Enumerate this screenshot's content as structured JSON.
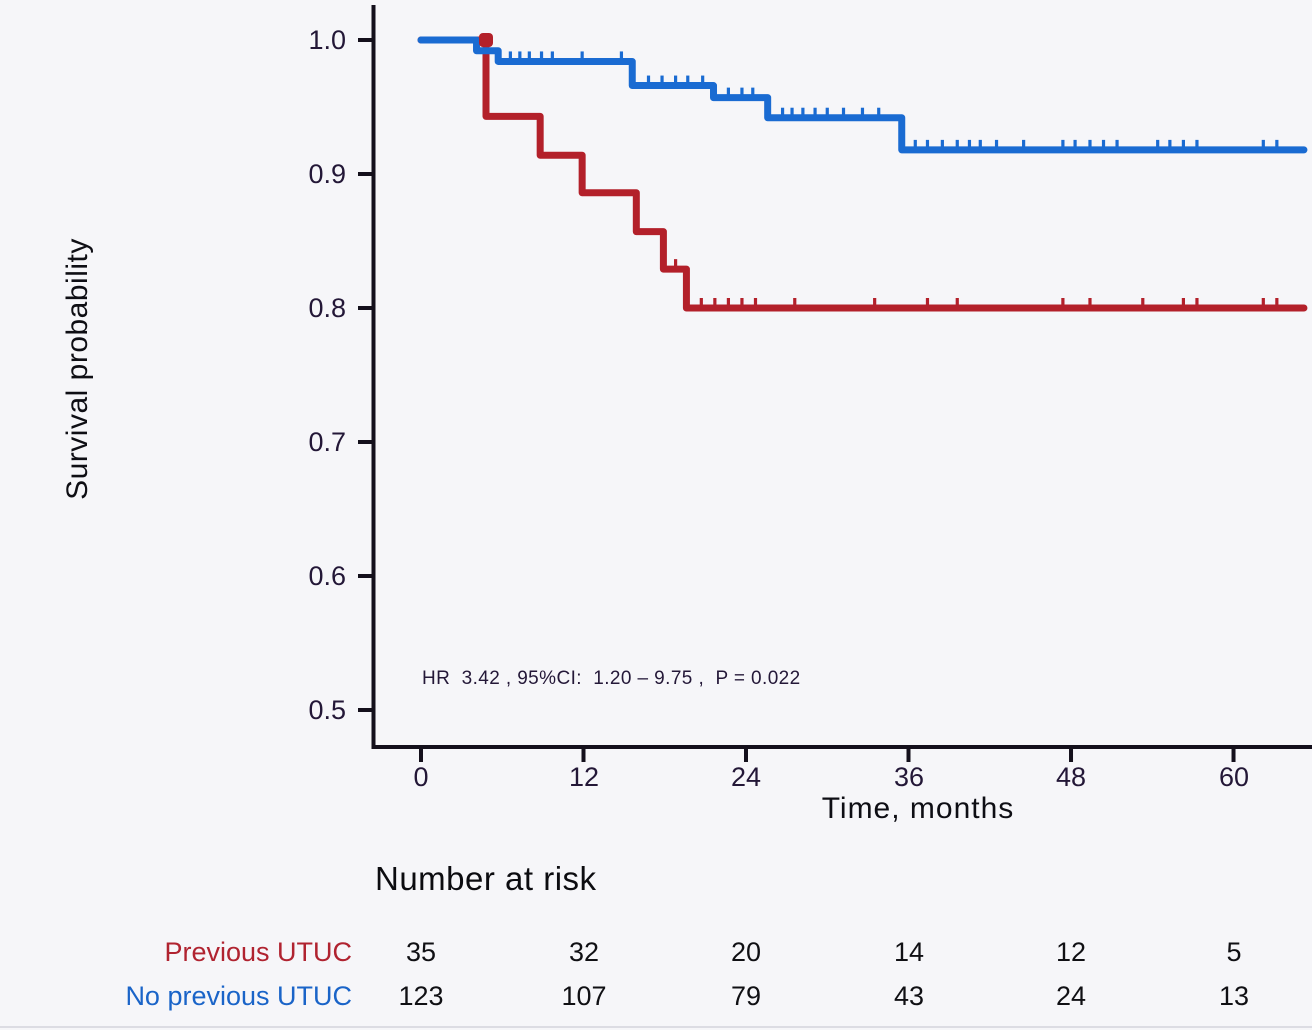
{
  "chart_data": {
    "type": "line",
    "variant": "kaplan_meier_step_survival",
    "title": "",
    "xlabel": "Time, months",
    "ylabel": "Survival probability",
    "xlim": [
      0,
      65.5
    ],
    "ylim": [
      0.47,
      1.02
    ],
    "grid": false,
    "x_ticks": [
      0,
      12,
      24,
      36,
      48,
      60
    ],
    "x_tick_labels": [
      "0",
      "12",
      "24",
      "36",
      "48",
      "60"
    ],
    "y_ticks": [
      1.0,
      0.9,
      0.8,
      0.7,
      0.6,
      0.5
    ],
    "y_tick_labels": [
      "1.0",
      "0.9",
      "0.8",
      "0.7",
      "0.6",
      "0.5"
    ],
    "annotation": "HR  3.42 , 95%CI:  1.20 – 9.75 ,  P = 0.022",
    "series": [
      {
        "name": "Previous UTUC",
        "color": "#b3202a",
        "points": [
          [
            0,
            1.0
          ],
          [
            4.8,
            0.943
          ],
          [
            8.8,
            0.914
          ],
          [
            11.9,
            0.886
          ],
          [
            15.9,
            0.857
          ],
          [
            17.9,
            0.829
          ],
          [
            19.6,
            0.8
          ],
          [
            65.2,
            0.8
          ]
        ],
        "censor_marks": [
          [
            18.8,
            0.829
          ],
          [
            20.7,
            0.8
          ],
          [
            21.7,
            0.8
          ],
          [
            22.7,
            0.8
          ],
          [
            23.7,
            0.8
          ],
          [
            24.7,
            0.8
          ],
          [
            27.6,
            0.8
          ],
          [
            33.5,
            0.8
          ],
          [
            37.4,
            0.8
          ],
          [
            39.6,
            0.8
          ],
          [
            47.4,
            0.8
          ],
          [
            49.4,
            0.8
          ],
          [
            53.3,
            0.8
          ],
          [
            56.3,
            0.8
          ],
          [
            57.3,
            0.8
          ],
          [
            62.2,
            0.8
          ],
          [
            63.2,
            0.8
          ]
        ],
        "event_marker": [
          4.8,
          1.0
        ]
      },
      {
        "name": "No previous UTUC",
        "color": "#1a6bd2",
        "points": [
          [
            0,
            1.0
          ],
          [
            4.1,
            0.992
          ],
          [
            5.7,
            0.984
          ],
          [
            15.6,
            0.966
          ],
          [
            21.6,
            0.957
          ],
          [
            25.6,
            0.942
          ],
          [
            35.5,
            0.918
          ],
          [
            65.2,
            0.918
          ]
        ],
        "censor_marks": [
          [
            6.6,
            0.984
          ],
          [
            7.3,
            0.984
          ],
          [
            8.0,
            0.984
          ],
          [
            8.9,
            0.984
          ],
          [
            9.7,
            0.984
          ],
          [
            11.9,
            0.984
          ],
          [
            14.8,
            0.984
          ],
          [
            16.8,
            0.966
          ],
          [
            17.8,
            0.966
          ],
          [
            18.8,
            0.966
          ],
          [
            19.7,
            0.966
          ],
          [
            20.8,
            0.966
          ],
          [
            22.7,
            0.957
          ],
          [
            23.7,
            0.957
          ],
          [
            24.5,
            0.957
          ],
          [
            26.7,
            0.942
          ],
          [
            27.4,
            0.942
          ],
          [
            28.2,
            0.942
          ],
          [
            29.1,
            0.942
          ],
          [
            30.0,
            0.942
          ],
          [
            31.2,
            0.942
          ],
          [
            32.6,
            0.942
          ],
          [
            33.8,
            0.942
          ],
          [
            36.5,
            0.918
          ],
          [
            37.4,
            0.918
          ],
          [
            38.5,
            0.918
          ],
          [
            39.6,
            0.918
          ],
          [
            40.5,
            0.918
          ],
          [
            41.3,
            0.918
          ],
          [
            42.5,
            0.918
          ],
          [
            44.5,
            0.918
          ],
          [
            47.4,
            0.918
          ],
          [
            48.3,
            0.918
          ],
          [
            49.4,
            0.918
          ],
          [
            50.4,
            0.918
          ],
          [
            51.4,
            0.918
          ],
          [
            54.4,
            0.918
          ],
          [
            55.3,
            0.918
          ],
          [
            56.3,
            0.918
          ],
          [
            57.3,
            0.918
          ],
          [
            62.2,
            0.918
          ],
          [
            63.2,
            0.918
          ]
        ]
      }
    ],
    "risk_table": {
      "title": "Number at risk",
      "times": [
        0,
        12,
        24,
        36,
        48,
        60
      ],
      "rows": [
        {
          "label": "Previous UTUC",
          "color": "#b02330",
          "counts": [
            35,
            32,
            20,
            14,
            12,
            5
          ]
        },
        {
          "label": "No previous UTUC",
          "color": "#1a64c8",
          "counts": [
            123,
            107,
            79,
            43,
            24,
            13
          ]
        }
      ]
    },
    "colors": {
      "previous_utuc_line": "#b3202a",
      "no_previous_utuc_line": "#1a6bd2",
      "axis": "#14101c",
      "tick_text": "#231737",
      "background": "#f6f6f9"
    }
  }
}
